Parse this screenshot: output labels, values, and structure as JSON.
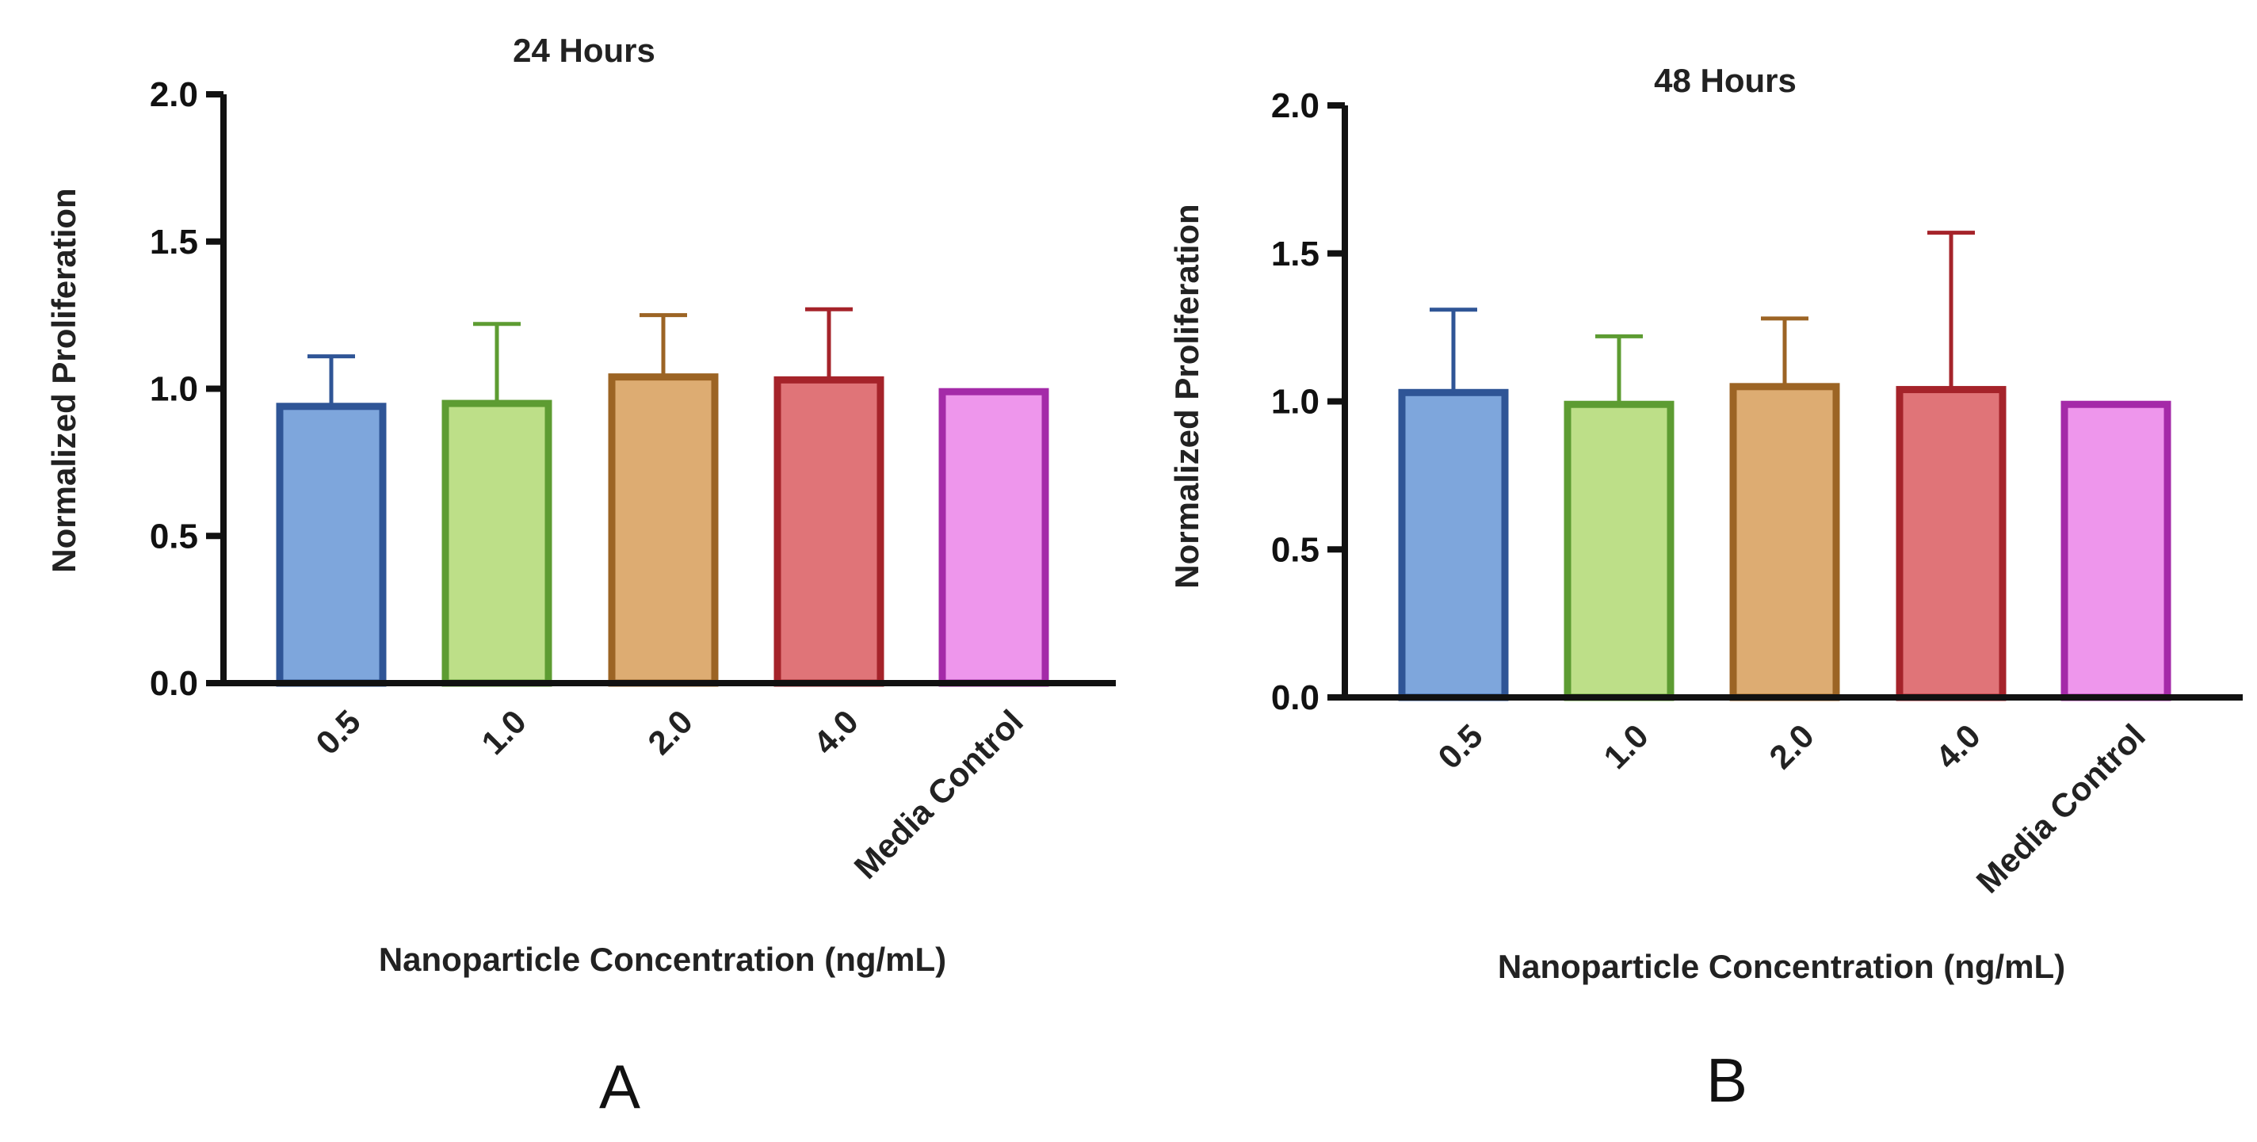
{
  "chart_data": [
    {
      "type": "bar",
      "panel_label": "A",
      "title": "24 Hours",
      "xlabel": "Nanoparticle Concentration (ng/mL)",
      "ylabel": "Normalized Proliferation",
      "ylim": [
        0,
        2.0
      ],
      "yticks": [
        "0.0",
        "0.5",
        "1.0",
        "1.5",
        "2.0"
      ],
      "categories": [
        "0.5",
        "1.0",
        "2.0",
        "4.0",
        "Media Control"
      ],
      "values": [
        0.94,
        0.95,
        1.04,
        1.03,
        0.99
      ],
      "error_upper": [
        1.11,
        1.22,
        1.25,
        1.27,
        null
      ],
      "grid": false
    },
    {
      "type": "bar",
      "panel_label": "B",
      "title": "48 Hours",
      "xlabel": "Nanoparticle Concentration (ng/mL)",
      "ylabel": "Normalized Proliferation",
      "ylim": [
        0,
        2.0
      ],
      "yticks": [
        "0.0",
        "0.5",
        "1.0",
        "1.5",
        "2.0"
      ],
      "categories": [
        "0.5",
        "1.0",
        "2.0",
        "4.0",
        "Media Control"
      ],
      "values": [
        1.03,
        0.99,
        1.05,
        1.04,
        0.99
      ],
      "error_upper": [
        1.31,
        1.22,
        1.28,
        1.57,
        null
      ],
      "grid": false
    }
  ],
  "colors": {
    "fills": [
      "#7ea6dc",
      "#bddf88",
      "#ddac72",
      "#e07478",
      "#ee96ec"
    ],
    "edges": [
      "#2f5596",
      "#5d9c32",
      "#9c6424",
      "#a5232a",
      "#a42aa8"
    ],
    "axis": "#111111"
  }
}
